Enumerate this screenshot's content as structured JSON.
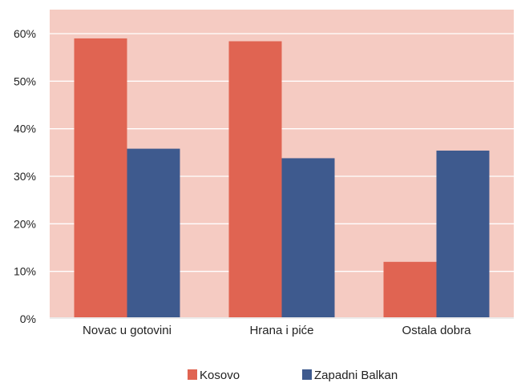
{
  "chart_data": {
    "type": "bar",
    "categories": [
      "Novac u gotovini",
      "Hrana i piće",
      "Ostala dobra"
    ],
    "series": [
      {
        "name": "Kosovo",
        "values": [
          59,
          58.4,
          12
        ],
        "color": "#E06452"
      },
      {
        "name": "Zapadni Balkan",
        "values": [
          35.8,
          33.8,
          35.4
        ],
        "color": "#3E5A8E"
      }
    ],
    "ylim": [
      0,
      60
    ],
    "yticks": [
      0,
      10,
      20,
      30,
      40,
      50,
      60
    ],
    "ytick_labels": [
      "0%",
      "10%",
      "20%",
      "30%",
      "40%",
      "50%",
      "60%"
    ],
    "title": "",
    "xlabel": "",
    "ylabel": "",
    "grid": true,
    "legend_position": "bottom",
    "plot_background": "#F5CBC2",
    "grid_color": "#FFFFFF"
  }
}
